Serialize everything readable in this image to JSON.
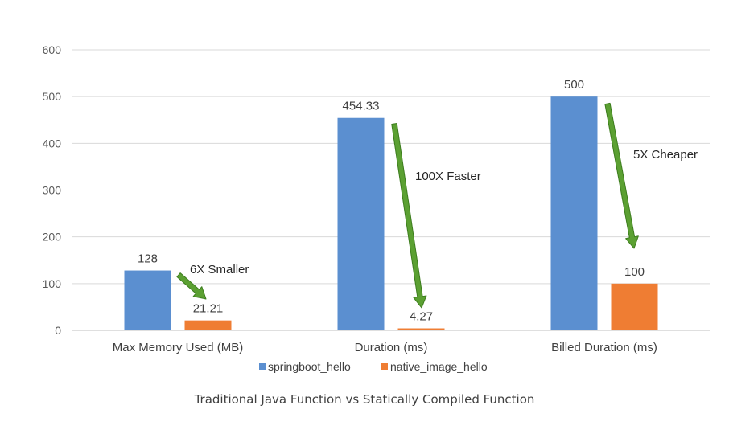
{
  "caption": "Traditional Java Function vs Statically Compiled Function",
  "colors": {
    "springboot": "#5b8fd0",
    "native": "#ef7d33",
    "arrow": "#5ba032",
    "arrow_edge": "#3d7d1e",
    "grid": "#d9d9d9",
    "axis": "#bfbfbf"
  },
  "chart_data": {
    "type": "bar",
    "categories": [
      "Max Memory Used (MB)",
      "Duration (ms)",
      "Billed Duration (ms)"
    ],
    "series": [
      {
        "name": "springboot_hello",
        "values": [
          128,
          454.33,
          500
        ],
        "labels": [
          "128",
          "454.33",
          "500"
        ],
        "color": "#5b8fd0"
      },
      {
        "name": "native_image_hello",
        "values": [
          21.21,
          4.27,
          100
        ],
        "labels": [
          "21.21",
          "4.27",
          "100"
        ],
        "color": "#ef7d33"
      }
    ],
    "ylim": [
      0,
      600
    ],
    "yticks": [
      0,
      100,
      200,
      300,
      400,
      500,
      600
    ],
    "grid": true,
    "legend_position": "bottom",
    "annotations": [
      {
        "text": "6X Smaller",
        "category": 0,
        "from_value": 128,
        "to_value": 21.21
      },
      {
        "text": "100X Faster",
        "category": 1,
        "from_value": 454.33,
        "to_value": 4.27
      },
      {
        "text": "5X Cheaper",
        "category": 2,
        "from_value": 500,
        "to_value": 100
      }
    ]
  }
}
